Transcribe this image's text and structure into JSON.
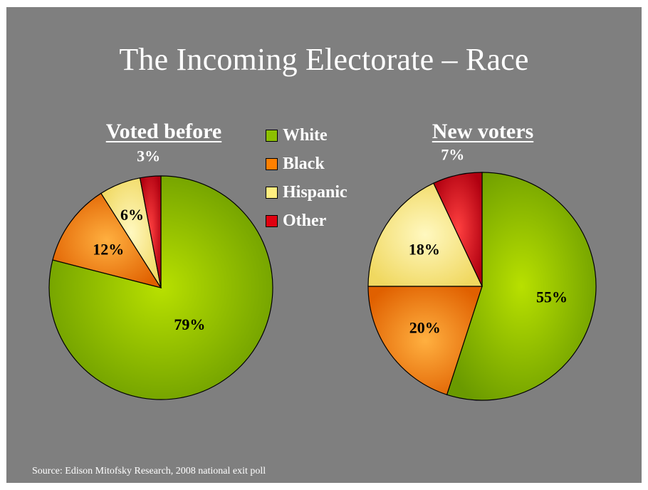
{
  "slide": {
    "title": "The Incoming Electorate – Race",
    "source": "Source: Edison Mitofsky Research, 2008 national exit poll"
  },
  "colors": {
    "background": "#7f7f7f",
    "White": "#8cc000",
    "Black": "#ff8000",
    "Hispanic": "#ffee80",
    "Other": "#e00010"
  },
  "chart_data": [
    {
      "type": "pie",
      "title": "Voted before",
      "categories": [
        "White",
        "Black",
        "Hispanic",
        "Other"
      ],
      "values": [
        79,
        12,
        6,
        3
      ],
      "labels": [
        "79%",
        "12%",
        "6%",
        "3%"
      ],
      "legend": "between charts"
    },
    {
      "type": "pie",
      "title": "New voters",
      "categories": [
        "White",
        "Black",
        "Hispanic",
        "Other"
      ],
      "values": [
        55,
        20,
        18,
        7
      ],
      "labels": [
        "55%",
        "20%",
        "18%",
        "7%"
      ],
      "legend": "between charts"
    }
  ],
  "legend": {
    "items": [
      {
        "label": "White",
        "color": "#8cc000"
      },
      {
        "label": "Black",
        "color": "#ff8000"
      },
      {
        "label": "Hispanic",
        "color": "#ffee80"
      },
      {
        "label": "Other",
        "color": "#e00010"
      }
    ]
  }
}
